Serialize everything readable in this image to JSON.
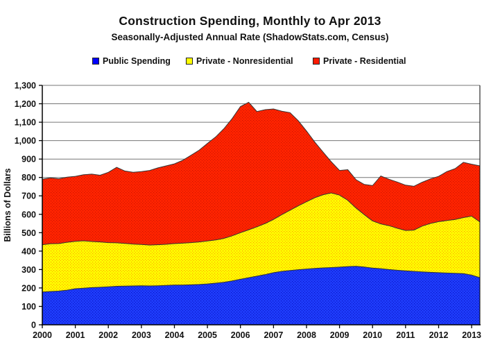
{
  "title": "Construction Spending, Monthly to Apr 2013",
  "subtitle": "Seasonally-Adjusted Annual Rate (ShadowStats.com, Census)",
  "chart_data": {
    "type": "area",
    "stacked": true,
    "title": "Construction Spending, Monthly to Apr 2013",
    "subtitle": "Seasonally-Adjusted Annual Rate (ShadowStats.com, Census)",
    "xlabel": "",
    "ylabel": "Billions of Dollars",
    "ylim": [
      0,
      1300
    ],
    "ytick_step": 100,
    "xticks": [
      2000,
      2001,
      2002,
      2003,
      2004,
      2005,
      2006,
      2007,
      2008,
      2009,
      2010,
      2011,
      2012,
      2013
    ],
    "grid": "horizontal",
    "legend_position": "top",
    "x_unit": "decimal-year (quarterly samples, Jan 2000 - Apr 2013)",
    "x": [
      2000.0,
      2000.25,
      2000.5,
      2000.75,
      2001.0,
      2001.25,
      2001.5,
      2001.75,
      2002.0,
      2002.25,
      2002.5,
      2002.75,
      2003.0,
      2003.25,
      2003.5,
      2003.75,
      2004.0,
      2004.25,
      2004.5,
      2004.75,
      2005.0,
      2005.25,
      2005.5,
      2005.75,
      2006.0,
      2006.25,
      2006.5,
      2006.75,
      2007.0,
      2007.25,
      2007.5,
      2007.75,
      2008.0,
      2008.25,
      2008.5,
      2008.75,
      2009.0,
      2009.25,
      2009.5,
      2009.75,
      2010.0,
      2010.25,
      2010.5,
      2010.75,
      2011.0,
      2011.25,
      2011.5,
      2011.75,
      2012.0,
      2012.25,
      2012.5,
      2012.75,
      2013.0,
      2013.25
    ],
    "series": [
      {
        "name": "Public Spending",
        "legend_color": "#0000ff",
        "color": "#1e3cfa",
        "dot_color": "#0a14c8",
        "values": [
          178,
          181,
          183,
          188,
          196,
          199,
          202,
          204,
          206,
          209,
          210,
          211,
          212,
          211,
          212,
          214,
          216,
          216,
          217,
          219,
          222,
          226,
          231,
          238,
          247,
          256,
          264,
          273,
          283,
          290,
          295,
          299,
          303,
          306,
          309,
          311,
          313,
          316,
          318,
          314,
          308,
          305,
          300,
          296,
          293,
          290,
          287,
          285,
          283,
          281,
          280,
          278,
          270,
          256
        ]
      },
      {
        "name": "Private - Nonresidential",
        "legend_color": "#ffff00",
        "color": "#ffff00",
        "dot_color": "#ff9a00",
        "values": [
          257,
          259,
          258,
          260,
          257,
          257,
          250,
          246,
          240,
          236,
          232,
          227,
          224,
          222,
          223,
          223,
          225,
          227,
          229,
          231,
          233,
          235,
          238,
          245,
          253,
          260,
          268,
          277,
          289,
          308,
          327,
          347,
          365,
          384,
          397,
          405,
          391,
          360,
          316,
          284,
          256,
          243,
          238,
          228,
          219,
          224,
          249,
          265,
          277,
          285,
          292,
          304,
          320,
          302
        ]
      },
      {
        "name": "Private - Residential",
        "legend_color": "#ff1a00",
        "color": "#ff2400",
        "dot_color": "#cf1200",
        "values": [
          355,
          358,
          352,
          354,
          353,
          359,
          366,
          362,
          382,
          410,
          393,
          390,
          396,
          405,
          417,
          426,
          433,
          450,
          474,
          498,
          530,
          559,
          596,
          637,
          685,
          692,
          626,
          618,
          600,
          562,
          530,
          462,
          384,
          302,
          232,
          169,
          134,
          166,
          154,
          164,
          192,
          260,
          252,
          251,
          246,
          238,
          238,
          242,
          246,
          266,
          276,
          300,
          282,
          305
        ]
      }
    ],
    "axis_colors": {
      "grid": "#767676",
      "axis": "#000000",
      "boundary_stroke": "#333333"
    }
  }
}
